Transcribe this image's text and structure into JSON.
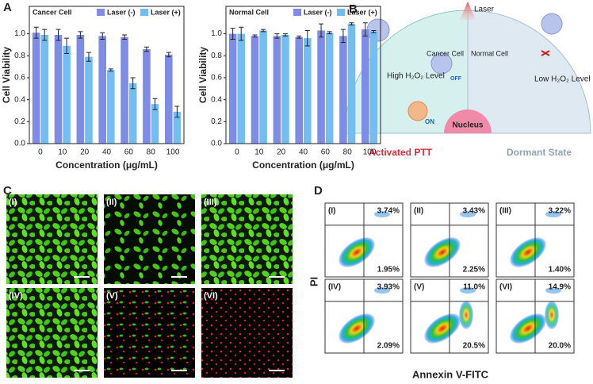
{
  "chart_data": [
    {
      "type": "bar",
      "title": "Cancer Cell",
      "categories": [
        "0",
        "10",
        "20",
        "40",
        "60",
        "80",
        "100"
      ],
      "series": [
        {
          "name": "Laser (-)",
          "color": "#7f8ce6",
          "values": [
            1.01,
            0.99,
            0.99,
            0.98,
            0.97,
            0.86,
            0.81
          ],
          "errors": [
            0.05,
            0.05,
            0.03,
            0.03,
            0.02,
            0.02,
            0.02
          ]
        },
        {
          "name": "Laser (+)",
          "color": "#72bdf2",
          "values": [
            0.99,
            0.89,
            0.79,
            0.67,
            0.55,
            0.36,
            0.29
          ],
          "errors": [
            0.05,
            0.07,
            0.04,
            0.01,
            0.05,
            0.05,
            0.05
          ]
        }
      ],
      "ylim": [
        0,
        1.25
      ],
      "yticks": [
        {
          "value": 0,
          "label": "0.0"
        },
        {
          "value": 0.2,
          "label": "0.2"
        },
        {
          "value": 0.4,
          "label": "0.4"
        },
        {
          "value": 0.6,
          "label": "0.6"
        },
        {
          "value": 0.8,
          "label": "0.8"
        },
        {
          "value": 1,
          "label": "1.0"
        }
      ],
      "y_label": "Cell Viability",
      "x_label": "Concentration (μg/mL)",
      "legend": "upper right"
    },
    {
      "type": "bar",
      "title": "Normal Cell",
      "categories": [
        "0",
        "10",
        "20",
        "40",
        "60",
        "80",
        "100"
      ],
      "series": [
        {
          "name": "Laser (-)",
          "color": "#7f8ce6",
          "values": [
            1.0,
            0.98,
            0.98,
            0.97,
            1.03,
            0.98,
            1.04
          ],
          "errors": [
            0.05,
            0.01,
            0.02,
            0.01,
            0.06,
            0.06,
            0.06
          ]
        },
        {
          "name": "Laser (+)",
          "color": "#72bdf2",
          "values": [
            1.0,
            1.03,
            0.99,
            0.96,
            1.01,
            1.09,
            1.02
          ],
          "errors": [
            0.06,
            0.01,
            0.01,
            0.07,
            0.01,
            0.01,
            0.01
          ]
        }
      ],
      "ylim": [
        0,
        1.25
      ],
      "yticks": [
        {
          "value": 0,
          "label": "0.0"
        },
        {
          "value": 0.2,
          "label": "0.2"
        },
        {
          "value": 0.4,
          "label": "0.4"
        },
        {
          "value": 0.6,
          "label": "0.6"
        },
        {
          "value": 0.8,
          "label": "0.8"
        },
        {
          "value": 1,
          "label": "1.0"
        }
      ],
      "y_label": "Cell Viability",
      "x_label": "Concentration (μg/mL)",
      "legend": "upper right"
    }
  ],
  "panels": {
    "a": "A",
    "b": "B",
    "c": "C",
    "d": "D"
  },
  "diagram": {
    "laser": "Laser",
    "cancer_cell": "Cancer Cell",
    "normal_cell": "Normal Cell",
    "high_level": "High H₂O₂ Level",
    "off": "OFF",
    "on": "ON",
    "low_level": "Low H₂O₂ Level",
    "nucleus": "Nucleus",
    "activated": "Activated PTT",
    "dormant": "Dormant State"
  },
  "micrographs": [
    "(I)",
    "(II)",
    "(III)",
    "(IV)",
    "(V)",
    "(VI)"
  ],
  "flow": {
    "y_label": "PI",
    "x_label": "Annexin V-FITC",
    "plots": [
      {
        "label": "(I)",
        "upper_right": "3.74%",
        "lower_right": "1.95%"
      },
      {
        "label": "(II)",
        "upper_right": "3.43%",
        "lower_right": "2.25%"
      },
      {
        "label": "(III)",
        "upper_right": "3.22%",
        "lower_right": "1.40%"
      },
      {
        "label": "(IV)",
        "upper_right": "3.93%",
        "lower_right": "2.09%"
      },
      {
        "label": "(V)",
        "upper_right": "11.0%",
        "lower_right": "20.5%"
      },
      {
        "label": "(VI)",
        "upper_right": "14.9%",
        "lower_right": "20.0%"
      }
    ]
  }
}
